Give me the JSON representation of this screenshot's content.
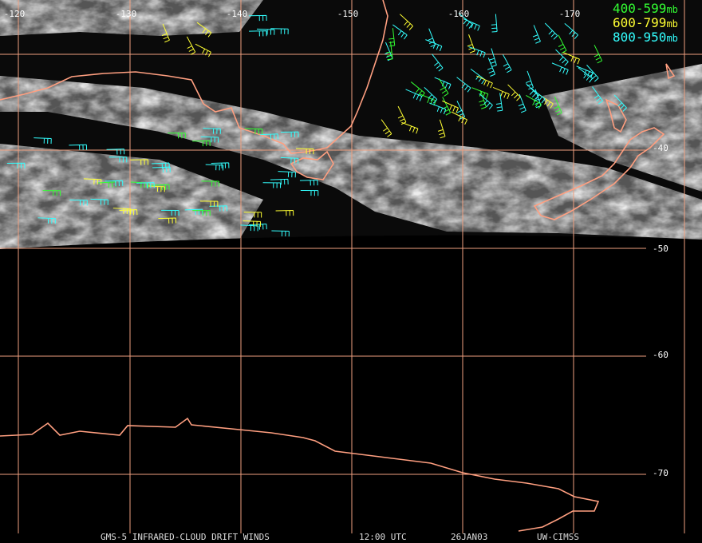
{
  "map": {
    "longitude_labels": [
      "-120",
      "-130",
      "-140",
      "-150",
      "-160",
      "-170"
    ],
    "latitude_labels": [
      "-40",
      "-50",
      "-60",
      "-70"
    ],
    "legend": [
      {
        "range": "400-599",
        "unit": "mb",
        "color": "#33ff33"
      },
      {
        "range": "600-799",
        "unit": "mb",
        "color": "#ffff33"
      },
      {
        "range": "800-950",
        "unit": "mb",
        "color": "#33ffff"
      }
    ],
    "footer": [
      "GMS-5 INFRARED-CLOUD DRIFT WINDS",
      "12:00 UTC",
      "26JAN03",
      "UW-CIMSS"
    ]
  }
}
